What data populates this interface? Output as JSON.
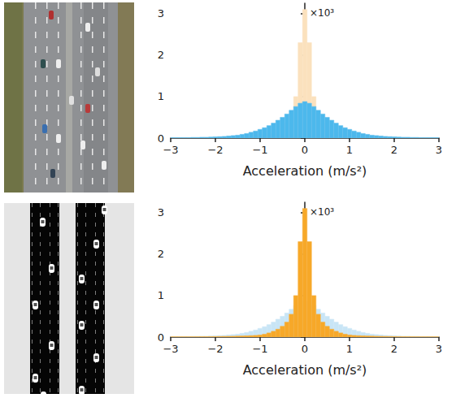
{
  "chart_data": [
    {
      "type": "histogram",
      "xlabel": "Acceleration (m/s²)",
      "ylabel": "×10³",
      "bins": [
        -3.05,
        -2.95,
        -2.85,
        -2.75,
        -2.65,
        -2.55,
        -2.45,
        -2.35,
        -2.25,
        -2.15,
        -2.05,
        -1.95,
        -1.85,
        -1.75,
        -1.65,
        -1.55,
        -1.45,
        -1.35,
        -1.25,
        -1.15,
        -1.05,
        -0.95,
        -0.85,
        -0.75,
        -0.65,
        -0.55,
        -0.45,
        -0.35,
        -0.25,
        -0.15,
        -0.05,
        0.05,
        0.15,
        0.25,
        0.35,
        0.45,
        0.55,
        0.65,
        0.75,
        0.85,
        0.95,
        1.05,
        1.15,
        1.25,
        1.35,
        1.45,
        1.55,
        1.65,
        1.75,
        1.85,
        1.95,
        2.05,
        2.15,
        2.25,
        2.35,
        2.45,
        2.55,
        2.65,
        2.75,
        2.85,
        2.95,
        3.05
      ],
      "series": [
        {
          "color": "#fbe1bd",
          "values": [
            0.005,
            0.005,
            0.005,
            0.005,
            0.005,
            0.006,
            0.007,
            0.008,
            0.009,
            0.01,
            0.012,
            0.014,
            0.016,
            0.018,
            0.02,
            0.023,
            0.026,
            0.03,
            0.035,
            0.04,
            0.05,
            0.07,
            0.1,
            0.14,
            0.19,
            0.26,
            0.36,
            0.55,
            1.0,
            2.3,
            3.1,
            2.3,
            1.0,
            0.55,
            0.36,
            0.26,
            0.19,
            0.14,
            0.1,
            0.07,
            0.05,
            0.04,
            0.035,
            0.03,
            0.026,
            0.023,
            0.02,
            0.018,
            0.016,
            0.014,
            0.012,
            0.01,
            0.009,
            0.008,
            0.007,
            0.006,
            0.005,
            0.005,
            0.005,
            0.005,
            0.005
          ]
        },
        {
          "color": "#4cb8ec",
          "values": [
            0.01,
            0.01,
            0.01,
            0.01,
            0.01,
            0.015,
            0.015,
            0.02,
            0.02,
            0.025,
            0.03,
            0.035,
            0.04,
            0.05,
            0.06,
            0.07,
            0.09,
            0.11,
            0.14,
            0.17,
            0.21,
            0.25,
            0.3,
            0.36,
            0.43,
            0.5,
            0.58,
            0.67,
            0.76,
            0.84,
            0.88,
            0.84,
            0.76,
            0.67,
            0.58,
            0.5,
            0.43,
            0.36,
            0.3,
            0.25,
            0.21,
            0.17,
            0.14,
            0.11,
            0.09,
            0.07,
            0.06,
            0.05,
            0.04,
            0.035,
            0.03,
            0.025,
            0.02,
            0.02,
            0.015,
            0.015,
            0.01,
            0.01,
            0.01,
            0.01,
            0.01
          ]
        }
      ],
      "xlim": [
        -3,
        3
      ],
      "xticks": [
        {
          "value": -3,
          "label": "−3"
        },
        {
          "value": -2,
          "label": "−2"
        },
        {
          "value": -1,
          "label": "−1"
        },
        0,
        1,
        2,
        3
      ],
      "ylim": [
        0,
        3.25
      ],
      "yticks": [
        0,
        1,
        2,
        3
      ],
      "grid": false
    },
    {
      "type": "histogram",
      "xlabel": "Acceleration (m/s²)",
      "ylabel": "×10³",
      "bins": [
        -3.05,
        -2.95,
        -2.85,
        -2.75,
        -2.65,
        -2.55,
        -2.45,
        -2.35,
        -2.25,
        -2.15,
        -2.05,
        -1.95,
        -1.85,
        -1.75,
        -1.65,
        -1.55,
        -1.45,
        -1.35,
        -1.25,
        -1.15,
        -1.05,
        -0.95,
        -0.85,
        -0.75,
        -0.65,
        -0.55,
        -0.45,
        -0.35,
        -0.25,
        -0.15,
        -0.05,
        0.05,
        0.15,
        0.25,
        0.35,
        0.45,
        0.55,
        0.65,
        0.75,
        0.85,
        0.95,
        1.05,
        1.15,
        1.25,
        1.35,
        1.45,
        1.55,
        1.65,
        1.75,
        1.85,
        1.95,
        2.05,
        2.15,
        2.25,
        2.35,
        2.45,
        2.55,
        2.65,
        2.75,
        2.85,
        2.95,
        3.05
      ],
      "series": [
        {
          "color": "#c8e5f6",
          "values": [
            0.01,
            0.01,
            0.01,
            0.01,
            0.01,
            0.015,
            0.015,
            0.02,
            0.02,
            0.025,
            0.03,
            0.035,
            0.04,
            0.05,
            0.06,
            0.07,
            0.09,
            0.11,
            0.14,
            0.17,
            0.21,
            0.25,
            0.3,
            0.36,
            0.43,
            0.5,
            0.58,
            0.67,
            0.76,
            0.84,
            0.88,
            0.84,
            0.76,
            0.67,
            0.58,
            0.5,
            0.43,
            0.36,
            0.3,
            0.25,
            0.21,
            0.17,
            0.14,
            0.11,
            0.09,
            0.07,
            0.06,
            0.05,
            0.04,
            0.035,
            0.03,
            0.025,
            0.02,
            0.02,
            0.015,
            0.015,
            0.01,
            0.01,
            0.01,
            0.01,
            0.01
          ]
        },
        {
          "color": "#f7a828",
          "values": [
            0.005,
            0.005,
            0.005,
            0.005,
            0.005,
            0.006,
            0.007,
            0.008,
            0.009,
            0.01,
            0.012,
            0.014,
            0.016,
            0.018,
            0.02,
            0.023,
            0.026,
            0.03,
            0.035,
            0.04,
            0.05,
            0.07,
            0.1,
            0.14,
            0.19,
            0.26,
            0.36,
            0.55,
            1.0,
            2.3,
            3.1,
            2.3,
            1.0,
            0.55,
            0.36,
            0.26,
            0.19,
            0.14,
            0.1,
            0.07,
            0.05,
            0.04,
            0.035,
            0.03,
            0.026,
            0.023,
            0.02,
            0.018,
            0.016,
            0.014,
            0.012,
            0.01,
            0.009,
            0.008,
            0.007,
            0.006,
            0.005,
            0.005,
            0.005,
            0.005,
            0.005
          ]
        }
      ],
      "xlim": [
        -3,
        3
      ],
      "xticks": [
        {
          "value": -3,
          "label": "−3"
        },
        {
          "value": -2,
          "label": "−2"
        },
        {
          "value": -1,
          "label": "−1"
        },
        0,
        1,
        2,
        3
      ],
      "ylim": [
        0,
        3.25
      ],
      "yticks": [
        0,
        1,
        2,
        3
      ],
      "grid": false
    }
  ]
}
